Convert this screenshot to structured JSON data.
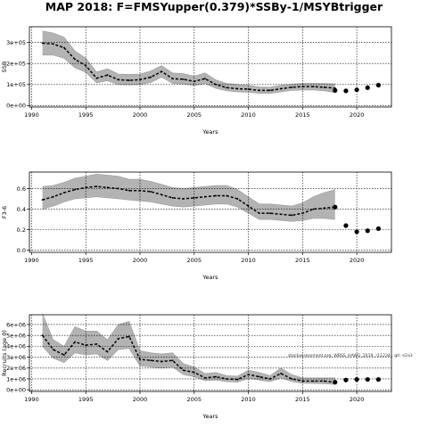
{
  "title": "MAP 2018: F=FMSYupper(0.379)*SSBy-1/MSYBtrigger",
  "chart_data": [
    {
      "type": "line",
      "title": "",
      "xlabel": "Years",
      "ylabel": "SSB",
      "xlim": [
        1989.8,
        2023.2
      ],
      "ylim": [
        -7000,
        375000
      ],
      "xticks": [
        "1990",
        "1995",
        "2000",
        "2005",
        "2010",
        "2015",
        "2020"
      ],
      "yticks": [
        {
          "value": 0,
          "label": "0e+00"
        },
        {
          "value": 100000,
          "label": "1e+05"
        },
        {
          "value": 200000,
          "label": "2e+05"
        },
        {
          "value": 300000,
          "label": "3e+05"
        }
      ],
      "grid": true,
      "historic": {
        "x": [
          1991,
          1992,
          1993,
          1994,
          1995,
          1996,
          1997,
          1998,
          1999,
          2000,
          2001,
          2002,
          2003,
          2004,
          2005,
          2006,
          2007,
          2008,
          2009,
          2010,
          2011,
          2012,
          2013,
          2014,
          2015,
          2016,
          2017,
          2018
        ],
        "median": [
          297000,
          293000,
          275000,
          220000,
          190000,
          130000,
          145000,
          123000,
          120000,
          123000,
          135000,
          162000,
          128000,
          125000,
          115000,
          128000,
          100000,
          85000,
          80000,
          78000,
          72000,
          72000,
          80000,
          87000,
          90000,
          90000,
          87000,
          83000
        ],
        "upper": [
          355000,
          345000,
          325000,
          260000,
          225000,
          160000,
          175000,
          150000,
          148000,
          150000,
          165000,
          190000,
          155000,
          152000,
          140000,
          155000,
          122000,
          105000,
          100000,
          96000,
          89000,
          88000,
          96000,
          102000,
          106000,
          106000,
          105000,
          103000
        ],
        "lower": [
          240000,
          240000,
          225000,
          180000,
          158000,
          108000,
          118000,
          100000,
          98000,
          100000,
          110000,
          135000,
          105000,
          103000,
          95000,
          105000,
          82000,
          70000,
          65000,
          63000,
          58000,
          58000,
          65000,
          72000,
          74000,
          74000,
          70000,
          62000
        ]
      },
      "projection": {
        "x": [
          2018,
          2019,
          2020,
          2021,
          2022
        ],
        "values": [
          72000,
          70000,
          75000,
          85000,
          97000
        ]
      }
    },
    {
      "type": "line",
      "title": "",
      "xlabel": "Years",
      "ylabel": "F3-6",
      "xlim": [
        1989.8,
        2023.2
      ],
      "ylim": [
        -0.02,
        0.76
      ],
      "xticks": [
        "1990",
        "1995",
        "2000",
        "2005",
        "2010",
        "2015",
        "2020"
      ],
      "yticks": [
        {
          "value": 0.0,
          "label": "0.0"
        },
        {
          "value": 0.2,
          "label": "0.2"
        },
        {
          "value": 0.4,
          "label": "0.4"
        },
        {
          "value": 0.6,
          "label": "0.6"
        }
      ],
      "grid": true,
      "historic": {
        "x": [
          1991,
          1992,
          1993,
          1994,
          1995,
          1996,
          1997,
          1998,
          1999,
          2000,
          2001,
          2002,
          2003,
          2004,
          2005,
          2006,
          2007,
          2008,
          2009,
          2010,
          2011,
          2012,
          2013,
          2014,
          2015,
          2016,
          2017,
          2018
        ],
        "median": [
          0.49,
          0.52,
          0.56,
          0.59,
          0.61,
          0.62,
          0.61,
          0.6,
          0.58,
          0.58,
          0.57,
          0.54,
          0.51,
          0.5,
          0.51,
          0.52,
          0.53,
          0.53,
          0.5,
          0.43,
          0.36,
          0.36,
          0.35,
          0.34,
          0.36,
          0.4,
          0.41,
          0.42
        ],
        "upper": [
          0.62,
          0.63,
          0.66,
          0.7,
          0.72,
          0.74,
          0.73,
          0.72,
          0.69,
          0.69,
          0.67,
          0.64,
          0.61,
          0.6,
          0.61,
          0.62,
          0.63,
          0.63,
          0.59,
          0.52,
          0.45,
          0.45,
          0.44,
          0.43,
          0.46,
          0.52,
          0.56,
          0.59
        ],
        "lower": [
          0.4,
          0.43,
          0.47,
          0.5,
          0.51,
          0.52,
          0.51,
          0.5,
          0.49,
          0.48,
          0.47,
          0.45,
          0.43,
          0.42,
          0.43,
          0.44,
          0.45,
          0.45,
          0.42,
          0.36,
          0.3,
          0.3,
          0.29,
          0.28,
          0.29,
          0.31,
          0.31,
          0.3
        ]
      },
      "projection": {
        "x": [
          2018,
          2019,
          2020,
          2021,
          2022
        ],
        "values": [
          0.42,
          0.24,
          0.18,
          0.19,
          0.21
        ]
      }
    },
    {
      "type": "line",
      "title": "",
      "xlabel": "Years",
      "ylabel": "Recruits (age 0)",
      "xlim": [
        1989.8,
        2023.2
      ],
      "ylim": [
        -150000,
        6900000
      ],
      "xticks": [
        "1990",
        "1995",
        "2000",
        "2005",
        "2010",
        "2015",
        "2020"
      ],
      "yticks": [
        {
          "value": 0,
          "label": "0e+00"
        },
        {
          "value": 1000000,
          "label": "1e+06"
        },
        {
          "value": 2000000,
          "label": "2e+06"
        },
        {
          "value": 3000000,
          "label": "3e+06"
        },
        {
          "value": 4000000,
          "label": "4e+06"
        },
        {
          "value": 5000000,
          "label": "5e+06"
        },
        {
          "value": 6000000,
          "label": "6e+06"
        }
      ],
      "grid": true,
      "annotation": "stockassessment.org, WBSS_HAWG_2019, r11234 , git: e2a3",
      "historic": {
        "x": [
          1991,
          1992,
          1993,
          1994,
          1995,
          1996,
          1997,
          1998,
          1999,
          2000,
          2001,
          2002,
          2003,
          2004,
          2005,
          2006,
          2007,
          2008,
          2009,
          2010,
          2011,
          2012,
          2013,
          2014,
          2015,
          2016,
          2017,
          2018
        ],
        "median": [
          5000000,
          3700000,
          3200000,
          4400000,
          4100000,
          4200000,
          3500000,
          4700000,
          4900000,
          2800000,
          2700000,
          2600000,
          2700000,
          1800000,
          1600000,
          1100000,
          1200000,
          1000000,
          950000,
          1400000,
          1200000,
          1000000,
          1500000,
          1000000,
          800000,
          800000,
          800000,
          700000
        ],
        "upper": [
          7000000,
          4600000,
          4000000,
          5800000,
          5400000,
          5400000,
          4600000,
          6000000,
          6300000,
          3600000,
          3400000,
          3300000,
          3400000,
          2400000,
          2100000,
          1500000,
          1600000,
          1300000,
          1250000,
          1800000,
          1600000,
          1300000,
          2000000,
          1400000,
          1100000,
          1100000,
          1100000,
          1100000
        ],
        "lower": [
          4000000,
          2900000,
          2500000,
          3400000,
          3200000,
          3300000,
          2700000,
          3700000,
          3800000,
          2200000,
          2100000,
          2000000,
          2100000,
          1400000,
          1200000,
          850000,
          900000,
          750000,
          700000,
          1050000,
          900000,
          750000,
          1100000,
          750000,
          600000,
          580000,
          560000,
          500000
        ]
      },
      "projection": {
        "x": [
          2018,
          2019,
          2020,
          2021,
          2022
        ],
        "values": [
          700000,
          900000,
          950000,
          950000,
          950000
        ]
      }
    }
  ]
}
